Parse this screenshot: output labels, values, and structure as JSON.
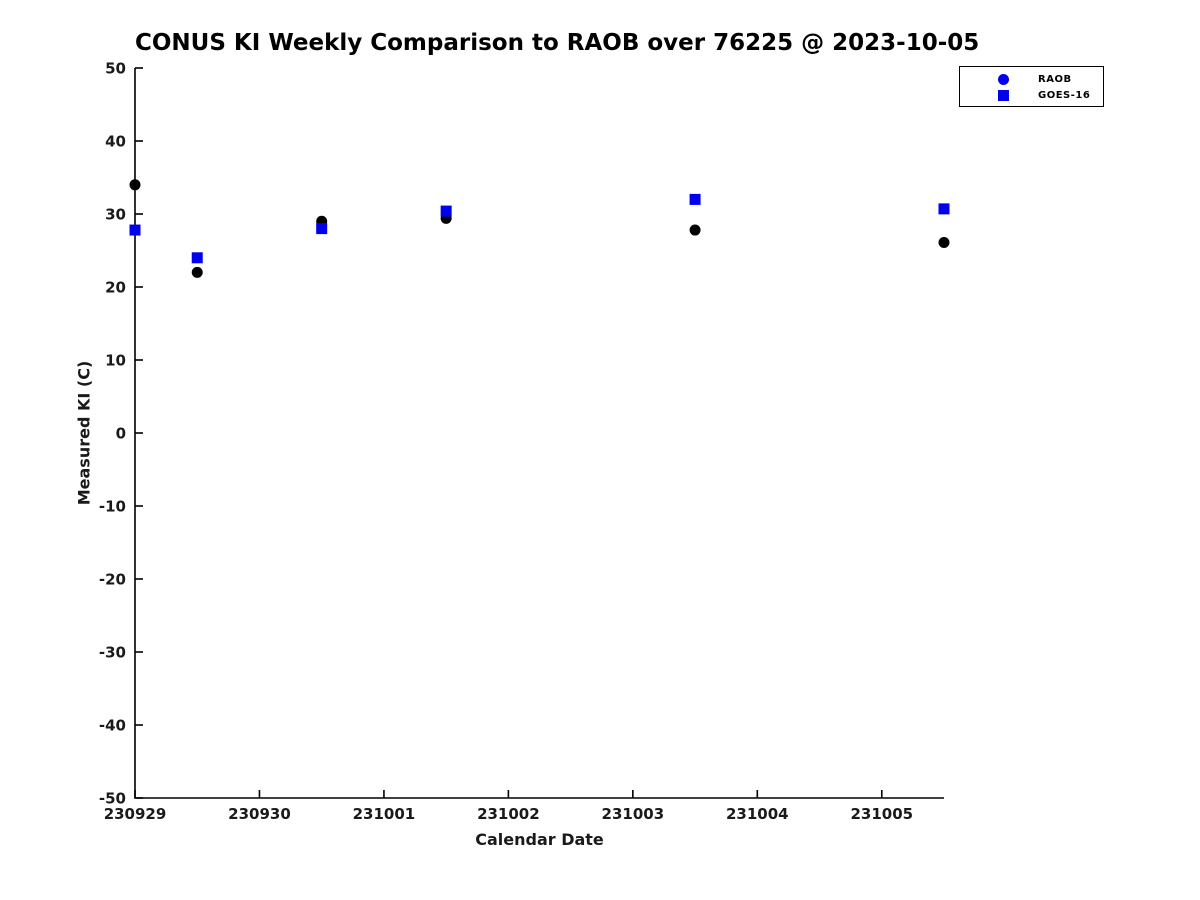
{
  "chart_data": {
    "type": "scatter",
    "title": "CONUS KI Weekly Comparison to RAOB over 76225 @ 2023-10-05",
    "xlabel": "Calendar Date",
    "ylabel": "Measured KI (C)",
    "grid": false,
    "x_axis": {
      "tick_labels": [
        "230929",
        "230930",
        "231001",
        "231002",
        "231003",
        "231004",
        "231005"
      ],
      "tick_days": [
        0,
        1,
        2,
        3,
        4,
        5,
        6
      ],
      "range_days": [
        0,
        6.5
      ]
    },
    "y_axis": {
      "ticks": [
        50,
        40,
        30,
        20,
        10,
        0,
        -10,
        -20,
        -30,
        -40,
        -50
      ],
      "range": [
        -50,
        50
      ]
    },
    "legend": {
      "position": "top-right"
    },
    "series": [
      {
        "name": "RAOB",
        "marker": "circle",
        "plot_color": "#000000",
        "legend_color": "#0000ee",
        "points": [
          {
            "day": 0.0,
            "ki": 34.0
          },
          {
            "day": 0.5,
            "ki": 22.0
          },
          {
            "day": 1.5,
            "ki": 29.0
          },
          {
            "day": 2.5,
            "ki": 29.4
          },
          {
            "day": 4.5,
            "ki": 27.8
          },
          {
            "day": 6.5,
            "ki": 26.1
          }
        ]
      },
      {
        "name": "GOES-16",
        "marker": "square",
        "plot_color": "#0000ee",
        "legend_color": "#0000ee",
        "points": [
          {
            "day": 0.0,
            "ki": 27.8
          },
          {
            "day": 0.5,
            "ki": 24.0
          },
          {
            "day": 1.5,
            "ki": 28.0
          },
          {
            "day": 2.5,
            "ki": 30.4
          },
          {
            "day": 4.5,
            "ki": 32.0
          },
          {
            "day": 6.5,
            "ki": 30.7
          }
        ]
      }
    ]
  }
}
